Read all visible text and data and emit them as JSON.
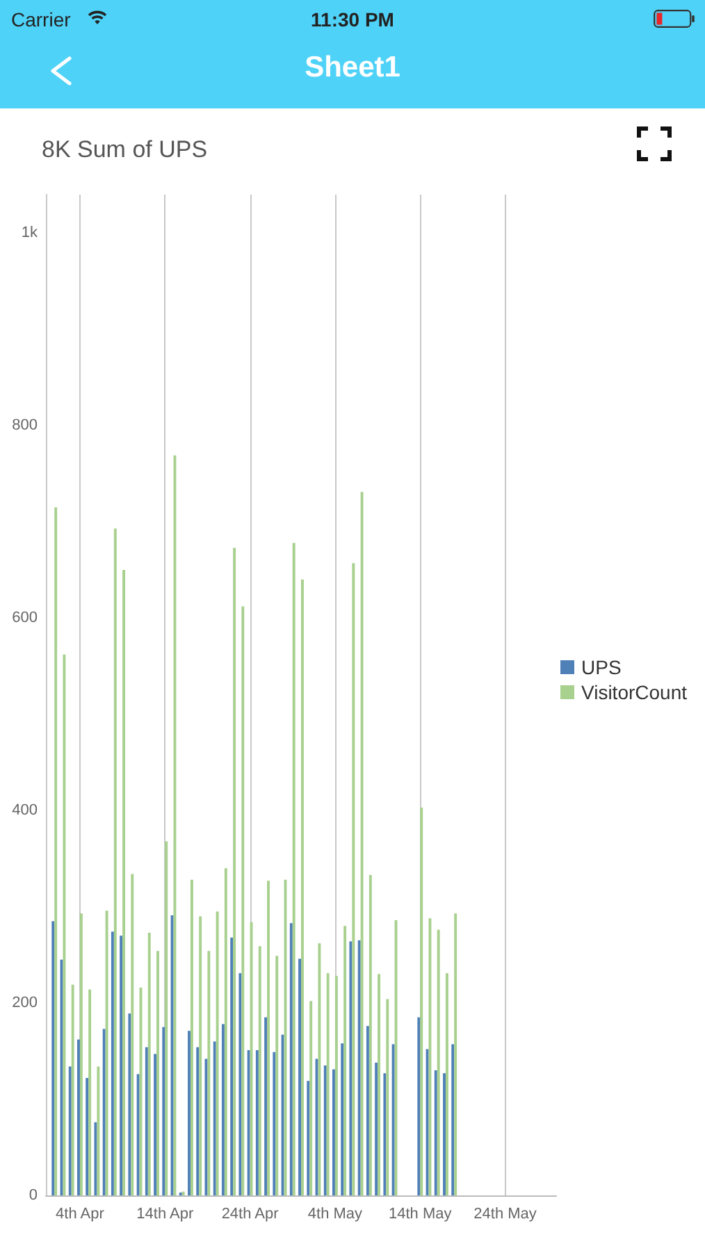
{
  "chart_data": {
    "type": "bar",
    "title": "8K Sum of UPS",
    "annotations": [
      "Carrier",
      "11:30 PM",
      "Sheet1"
    ],
    "x": [
      "--04-01",
      "--04-02",
      "--04-03",
      "--04-04",
      "--04-05",
      "--04-06",
      "--04-07",
      "--04-08",
      "--04-09",
      "--04-10",
      "--04-11",
      "--04-12",
      "--04-13",
      "--04-14",
      "--04-15",
      "--04-16",
      "--04-17",
      "--04-18",
      "--04-19",
      "--04-20",
      "--04-21",
      "--04-22",
      "--04-23",
      "--04-24",
      "--04-25",
      "--04-26",
      "--04-27",
      "--04-28",
      "--04-29",
      "--04-30",
      "--05-01",
      "--05-02",
      "--05-03",
      "--05-04",
      "--05-05",
      "--05-06",
      "--05-07",
      "--05-08",
      "--05-09",
      "--05-10",
      "--05-11",
      "--05-14",
      "--05-15",
      "--05-16",
      "--05-17",
      "--05-18"
    ],
    "series": [
      {
        "name": "UPS",
        "color": "#4f80b8",
        "values": [
          285,
          245,
          134,
          162,
          122,
          76,
          173,
          274,
          270,
          189,
          126,
          154,
          147,
          175,
          291,
          3,
          171,
          154,
          142,
          160,
          178,
          268,
          231,
          151,
          151,
          185,
          149,
          167,
          283,
          246,
          119,
          142,
          135,
          131,
          158,
          264,
          265,
          176,
          138,
          127,
          157,
          185,
          152,
          130,
          127,
          157
        ]
      },
      {
        "name": "VisitorCount",
        "color": "#a8d08e",
        "values": [
          715,
          562,
          219,
          293,
          214,
          134,
          296,
          693,
          650,
          334,
          216,
          273,
          254,
          368,
          769,
          4,
          328,
          290,
          254,
          295,
          340,
          673,
          612,
          284,
          259,
          327,
          249,
          328,
          678,
          640,
          202,
          262,
          231,
          228,
          280,
          657,
          731,
          333,
          230,
          204,
          286,
          403,
          288,
          276,
          231,
          293
        ]
      }
    ],
    "xlim": [
      "--03-31",
      "--05-30"
    ],
    "xticks": [
      {
        "value": "--04-04",
        "label": "4th Apr"
      },
      {
        "value": "--04-14",
        "label": "14th Apr"
      },
      {
        "value": "--04-24",
        "label": "24th Apr"
      },
      {
        "value": "--05-04",
        "label": "4th May"
      },
      {
        "value": "--05-14",
        "label": "14th May"
      },
      {
        "value": "--05-24",
        "label": "24th May"
      }
    ],
    "ylim": [
      0,
      1040
    ],
    "yticks": [
      0,
      200,
      400,
      600,
      800,
      {
        "value": 1000,
        "label": "1k"
      }
    ],
    "grid": "x",
    "legend": "right"
  }
}
